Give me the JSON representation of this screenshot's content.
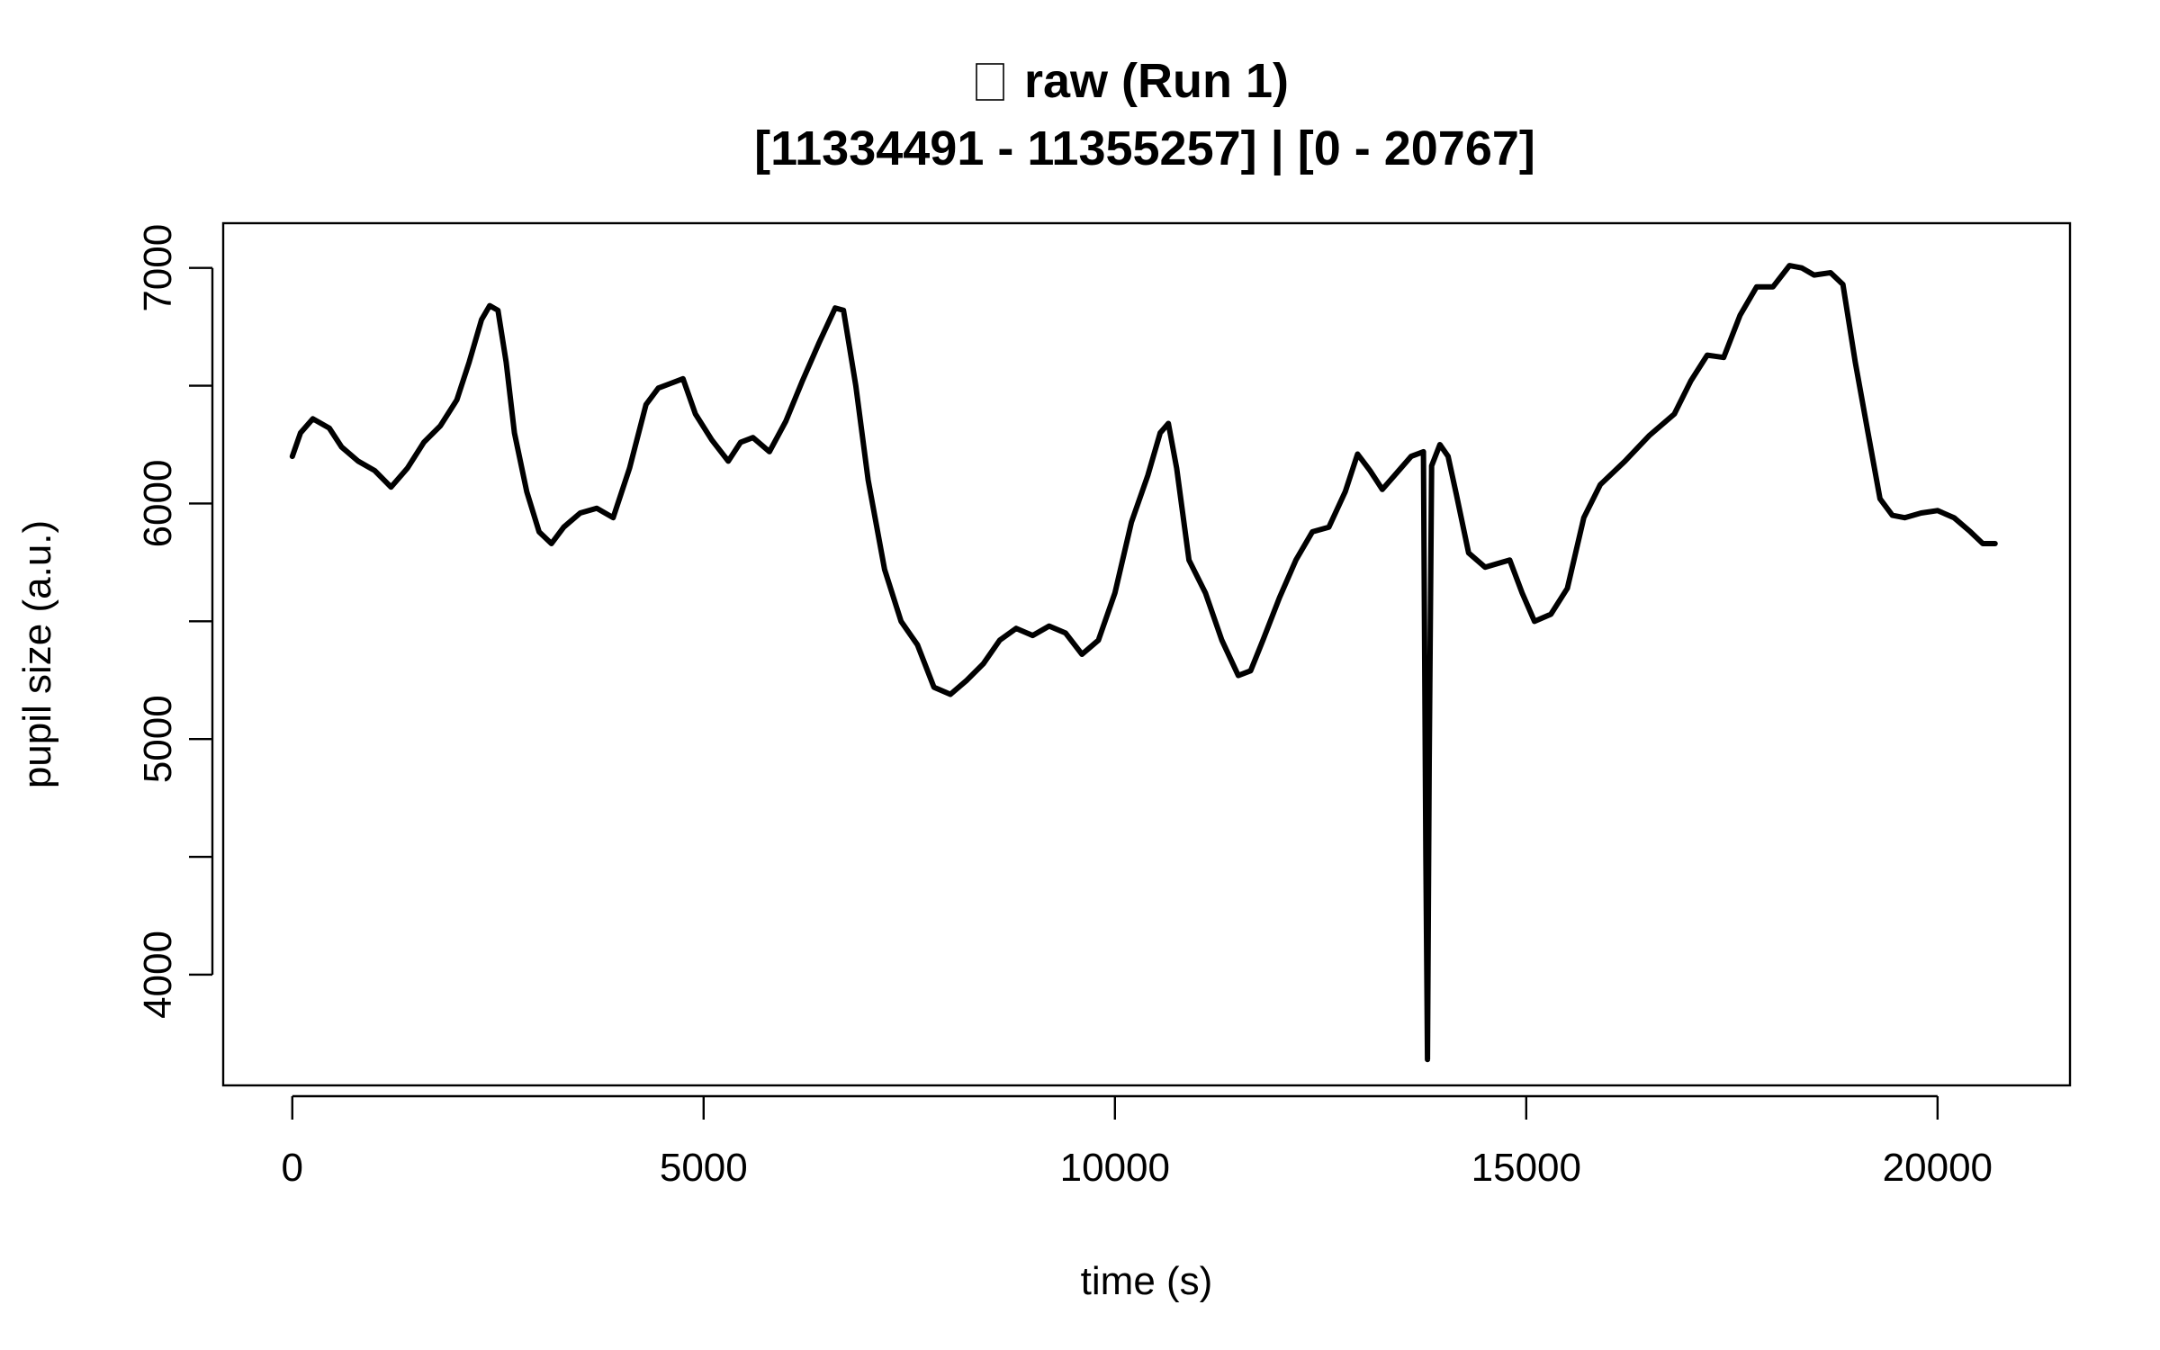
{
  "chart_data": {
    "type": "line",
    "title": "raw (Run 1)",
    "subtitle": "[11334491 - 11355257] | [0 - 20767]",
    "xlabel": "time (s)",
    "ylabel": "pupil size (a.u.)",
    "xlim": [
      -840,
      21610
    ],
    "ylim": [
      3530,
      7190
    ],
    "x_ticks": [
      0,
      5000,
      10000,
      15000,
      20000
    ],
    "x_tick_labels": [
      "0",
      "5000",
      "10000",
      "15000",
      "20000"
    ],
    "y_ticks": [
      4000,
      4500,
      5000,
      5500,
      6000,
      6500,
      7000
    ],
    "y_tick_labels": [
      "4000",
      "",
      "5000",
      "",
      "6000",
      "",
      "7000"
    ],
    "grid": false,
    "legend": "none",
    "line_color": "#000000",
    "series": [
      {
        "x": [
          0,
          100,
          250,
          450,
          600,
          800,
          1000,
          1200,
          1400,
          1600,
          1800,
          2000,
          2150,
          2300,
          2400,
          2500,
          2600,
          2700,
          2850,
          3000,
          3150,
          3300,
          3500,
          3700,
          3900,
          4100,
          4300,
          4450,
          4600,
          4750,
          4900,
          5100,
          5300,
          5450,
          5600,
          5800,
          6000,
          6200,
          6400,
          6600,
          6700,
          6850,
          7000,
          7200,
          7400,
          7600,
          7800,
          8000,
          8200,
          8400,
          8600,
          8800,
          9000,
          9200,
          9400,
          9600,
          9800,
          10000,
          10200,
          10400,
          10550,
          10650,
          10750,
          10900,
          11100,
          11300,
          11500,
          11650,
          11800,
          12000,
          12200,
          12400,
          12600,
          12800,
          12950,
          13100,
          13250,
          13400,
          13600,
          13750,
          13780,
          13800,
          13820,
          13850,
          13950,
          14050,
          14150,
          14300,
          14500,
          14700,
          14800,
          14950,
          15100,
          15300,
          15500,
          15700,
          15900,
          16200,
          16500,
          16800,
          17000,
          17200,
          17400,
          17600,
          17800,
          18000,
          18200,
          18350,
          18500,
          18700,
          18850,
          19000,
          19150,
          19300,
          19450,
          19600,
          19800,
          20000,
          20200,
          20400,
          20550,
          20700
        ],
        "y": [
          6200,
          6300,
          6360,
          6320,
          6240,
          6180,
          6140,
          6070,
          6150,
          6260,
          6330,
          6440,
          6600,
          6780,
          6840,
          6820,
          6600,
          6300,
          6050,
          5880,
          5830,
          5900,
          5960,
          5980,
          5940,
          6150,
          6420,
          6490,
          6510,
          6530,
          6380,
          6270,
          6180,
          6260,
          6280,
          6220,
          6350,
          6520,
          6680,
          6830,
          6820,
          6500,
          6100,
          5720,
          5500,
          5400,
          5220,
          5190,
          5250,
          5320,
          5420,
          5470,
          5440,
          5480,
          5450,
          5360,
          5420,
          5620,
          5920,
          6120,
          6300,
          6340,
          6150,
          5760,
          5620,
          5420,
          5270,
          5290,
          5420,
          5600,
          5760,
          5880,
          5900,
          6050,
          6210,
          6140,
          6060,
          6120,
          6200,
          6220,
          4500,
          3640,
          4900,
          6160,
          6250,
          6200,
          6040,
          5790,
          5730,
          5750,
          5760,
          5620,
          5500,
          5530,
          5640,
          5940,
          6080,
          6180,
          6290,
          6380,
          6520,
          6630,
          6620,
          6800,
          6920,
          6920,
          7010,
          7000,
          6970,
          6980,
          6930,
          6600,
          6310,
          6020,
          5950,
          5940,
          5960,
          5970,
          5940,
          5880,
          5830,
          5830
        ]
      }
    ]
  }
}
